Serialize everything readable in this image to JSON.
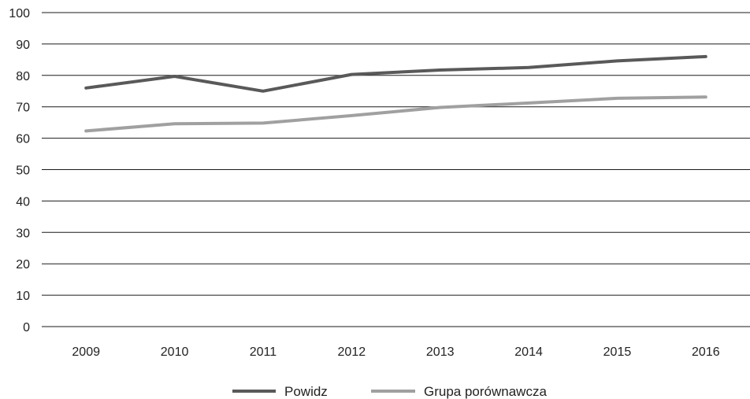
{
  "chart_data": {
    "type": "line",
    "title": "",
    "xlabel": "",
    "ylabel": "",
    "categories": [
      "2009",
      "2010",
      "2011",
      "2012",
      "2013",
      "2014",
      "2015",
      "2016"
    ],
    "ylim": [
      0,
      100
    ],
    "yticks": [
      "0",
      "10",
      "20",
      "30",
      "40",
      "50",
      "60",
      "70",
      "80",
      "90",
      "100"
    ],
    "grid": true,
    "legend_position": "bottom",
    "series": [
      {
        "name": "Powidz",
        "color": "#595959",
        "values": [
          76,
          79.7,
          75,
          80.3,
          81.7,
          82.5,
          84.6,
          86
        ]
      },
      {
        "name": "Grupa porównawcza",
        "color": "#a0a0a0",
        "values": [
          62.3,
          64.6,
          64.8,
          67.2,
          69.8,
          71.2,
          72.7,
          73.1
        ]
      }
    ]
  }
}
